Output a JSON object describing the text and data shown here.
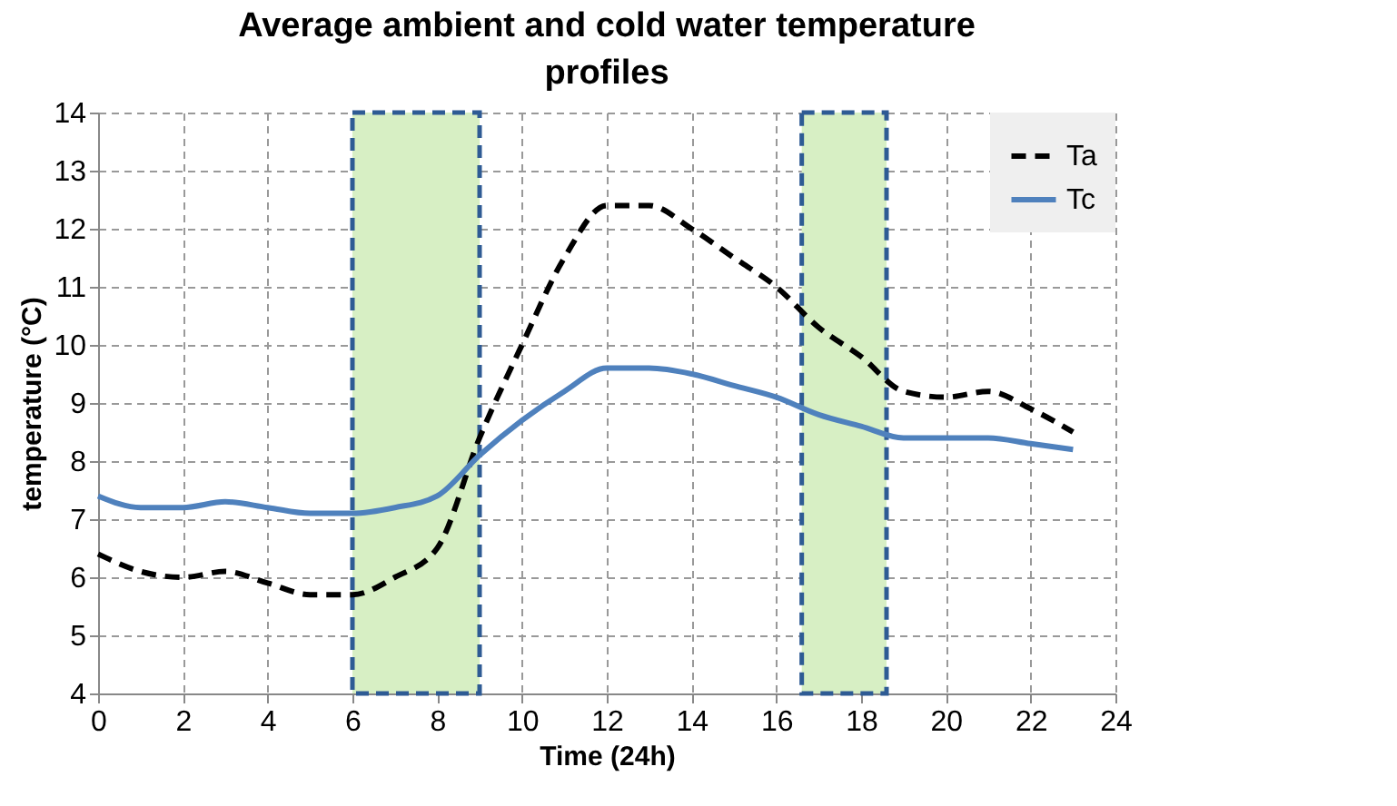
{
  "chart_data": {
    "type": "line",
    "title": "Average ambient and cold water temperature profiles",
    "xlabel": "Time (24h)",
    "ylabel": "temperature  (°C)",
    "x": [
      0,
      1,
      2,
      3,
      4,
      5,
      6,
      7,
      8,
      9,
      10,
      11,
      12,
      13,
      14,
      15,
      16,
      17,
      18,
      19,
      20,
      21,
      22,
      23
    ],
    "series": [
      {
        "name": "Ta",
        "color": "#000000",
        "line_style": "dashed",
        "values": [
          6.4,
          6.1,
          6.0,
          6.1,
          5.9,
          5.7,
          5.7,
          6.0,
          6.5,
          8.4,
          10.0,
          11.5,
          12.4,
          12.4,
          12.0,
          11.5,
          11.0,
          10.3,
          9.8,
          9.2,
          9.1,
          9.2,
          8.9,
          8.5
        ]
      },
      {
        "name": "Tc",
        "color": "#4f81bd",
        "line_style": "solid",
        "values": [
          7.4,
          7.2,
          7.2,
          7.3,
          7.2,
          7.1,
          7.1,
          7.2,
          7.4,
          8.1,
          8.7,
          9.2,
          9.6,
          9.6,
          9.5,
          9.3,
          9.1,
          8.8,
          8.6,
          8.4,
          8.4,
          8.4,
          8.3,
          8.2
        ]
      }
    ],
    "xlim": [
      0,
      24
    ],
    "xticks": [
      0,
      2,
      4,
      6,
      8,
      10,
      12,
      14,
      16,
      18,
      20,
      22,
      24
    ],
    "ylim": [
      4,
      14
    ],
    "yticks": [
      4,
      5,
      6,
      7,
      8,
      9,
      10,
      11,
      12,
      13,
      14
    ],
    "bands": [
      {
        "axis": "x",
        "from": 6,
        "to": 9,
        "color": "#d7efc4"
      },
      {
        "axis": "x",
        "from": 16.6,
        "to": 18.6,
        "color": "#d7efc4"
      }
    ],
    "grid": true,
    "legend": "top right",
    "marker": "none"
  }
}
